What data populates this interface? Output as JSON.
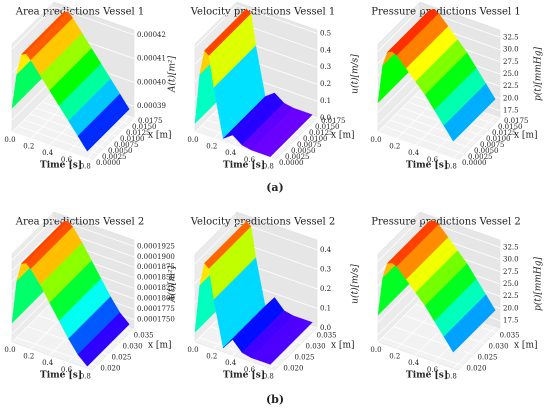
{
  "panel_labels": [
    "(a)",
    "(b)"
  ],
  "chart_data": [
    {
      "type": "surface3d",
      "title": "Area predictions Vessel 1",
      "xlabel": "Time [s]",
      "ylabel": "x [m]",
      "zlabel": "A(t)[m²]",
      "x": [
        0,
        0.05,
        0.1,
        0.15,
        0.2,
        0.3,
        0.4,
        0.5,
        0.6,
        0.7,
        0.8
      ],
      "values": [
        0.000395,
        0.00041,
        0.000419,
        0.00042,
        0.000418,
        0.000413,
        0.000408,
        0.000403,
        0.000398,
        0.000393,
        0.000388
      ],
      "xlim": [
        0,
        0.85
      ],
      "xticks": [
        {
          "value": 0,
          "label": "0.0"
        },
        0.2,
        0.4,
        0.6,
        0.8
      ],
      "ylim": [
        0,
        0.0175
      ],
      "yticks": [
        {
          "value": 0,
          "label": "0.0000"
        },
        0.0025,
        {
          "value": 0.005,
          "label": "0.0050"
        },
        0.0075,
        {
          "value": 0.01,
          "label": "0.0100"
        },
        0.0125,
        {
          "value": 0.015,
          "label": "0.0150"
        },
        0.0175
      ],
      "zlim": [
        0.000385,
        0.000422
      ],
      "zticks": [
        0.00039,
        {
          "value": 0.0004,
          "label": "0.00040"
        },
        0.00041,
        0.00042
      ]
    },
    {
      "type": "surface3d",
      "title": "Velocity predictions Vessel 1",
      "xlabel": "Time [s]",
      "ylabel": "x [m]",
      "zlabel": "u(t)[m/s]",
      "x": [
        0,
        0.05,
        0.1,
        0.15,
        0.2,
        0.3,
        0.4,
        0.5,
        0.6,
        0.7,
        0.8
      ],
      "values": [
        0.05,
        0.35,
        0.5,
        0.48,
        0.3,
        0.02,
        0.06,
        0.02,
        0.01,
        0.01,
        0.01
      ],
      "xlim": [
        0,
        0.85
      ],
      "xticks": [
        {
          "value": 0,
          "label": "0.0"
        },
        0.2,
        0.4,
        0.6,
        0.8
      ],
      "ylim": [
        0,
        0.0175
      ],
      "yticks": [
        {
          "value": 0,
          "label": "0.0000"
        },
        0.0025,
        {
          "value": 0.005,
          "label": "0.0050"
        },
        0.0075,
        {
          "value": 0.01,
          "label": "0.0100"
        },
        0.0125,
        {
          "value": 0.015,
          "label": "0.0150"
        },
        0.0175
      ],
      "zlim": [
        0,
        0.52
      ],
      "zticks": [
        {
          "value": 0,
          "label": "0.0"
        },
        0.1,
        0.2,
        0.3,
        0.4,
        0.5
      ]
    },
    {
      "type": "surface3d",
      "title": "Pressure predictions Vessel 1",
      "xlabel": "Time [s]",
      "ylabel": "x [m]",
      "zlabel": "p(t)[mmHg]",
      "x": [
        0,
        0.05,
        0.1,
        0.15,
        0.2,
        0.3,
        0.4,
        0.5,
        0.6,
        0.7,
        0.8
      ],
      "values": [
        22,
        30,
        33,
        33.5,
        33,
        31,
        29,
        27,
        24.5,
        22,
        19.5
      ],
      "xlim": [
        0,
        0.85
      ],
      "xticks": [
        {
          "value": 0,
          "label": "0.0"
        },
        0.2,
        0.4,
        0.6,
        0.8
      ],
      "ylim": [
        0,
        0.0175
      ],
      "yticks": [
        {
          "value": 0,
          "label": "0.0000"
        },
        0.0025,
        {
          "value": 0.005,
          "label": "0.0050"
        },
        0.0075,
        {
          "value": 0.01,
          "label": "0.0100"
        },
        0.0125,
        {
          "value": 0.015,
          "label": "0.0150"
        },
        0.0175
      ],
      "zlim": [
        16,
        34
      ],
      "zticks": [
        17.5,
        {
          "value": 20,
          "label": "20.0"
        },
        22.5,
        {
          "value": 25,
          "label": "25.0"
        },
        27.5,
        {
          "value": 30,
          "label": "30.0"
        },
        32.5
      ]
    },
    {
      "type": "surface3d",
      "title": "Area predictions Vessel 2",
      "xlabel": "Time [s]",
      "ylabel": "x [m]",
      "zlabel": "A(t)[m²]",
      "x": [
        0,
        0.05,
        0.1,
        0.15,
        0.2,
        0.3,
        0.4,
        0.5,
        0.6,
        0.7,
        0.8
      ],
      "values": [
        0.0001775,
        0.000188,
        0.0001925,
        0.000193,
        0.000192,
        0.000189,
        0.0001855,
        0.000182,
        0.0001785,
        0.0001755,
        0.0001735
      ],
      "xlim": [
        0,
        0.85
      ],
      "xticks": [
        {
          "value": 0,
          "label": "0.0"
        },
        0.2,
        0.4,
        0.6,
        0.8
      ],
      "ylim": [
        0.018,
        0.037
      ],
      "yticks": [
        {
          "value": 0.02,
          "label": "0.020"
        },
        0.025,
        {
          "value": 0.03,
          "label": "0.030"
        },
        0.035
      ],
      "zlim": [
        0.000173,
        0.000194
      ],
      "zticks": [
        {
          "value": 0.000175,
          "label": "0.0001750"
        },
        0.0001775,
        {
          "value": 0.00018,
          "label": "0.0001800"
        },
        0.0001825,
        {
          "value": 0.000185,
          "label": "0.0001850"
        },
        0.0001875,
        {
          "value": 0.00019,
          "label": "0.0001900"
        },
        0.0001925
      ]
    },
    {
      "type": "surface3d",
      "title": "Velocity predictions Vessel 2",
      "xlabel": "Time [s]",
      "ylabel": "x [m]",
      "zlabel": "u(t)[m/s]",
      "x": [
        0,
        0.05,
        0.1,
        0.15,
        0.2,
        0.3,
        0.4,
        0.5,
        0.6,
        0.7,
        0.8
      ],
      "values": [
        0.05,
        0.3,
        0.42,
        0.4,
        0.25,
        0.02,
        0.08,
        0.03,
        0.02,
        0.02,
        0.02
      ],
      "xlim": [
        0,
        0.85
      ],
      "xticks": [
        {
          "value": 0,
          "label": "0.0"
        },
        0.2,
        0.4,
        0.6,
        0.8
      ],
      "ylim": [
        0.018,
        0.037
      ],
      "yticks": [
        {
          "value": 0.02,
          "label": "0.020"
        },
        0.025,
        {
          "value": 0.03,
          "label": "0.030"
        },
        0.035
      ],
      "zlim": [
        0,
        0.45
      ],
      "zticks": [
        {
          "value": 0,
          "label": "0.0"
        },
        0.1,
        0.2,
        0.3,
        0.4
      ]
    },
    {
      "type": "surface3d",
      "title": "Pressure predictions Vessel 2",
      "xlabel": "Time [s]",
      "ylabel": "x [m]",
      "zlabel": "p(t)[mmHg]",
      "x": [
        0,
        0.05,
        0.1,
        0.15,
        0.2,
        0.3,
        0.4,
        0.5,
        0.6,
        0.7,
        0.8
      ],
      "values": [
        21.5,
        29.5,
        32.8,
        33.2,
        32.8,
        30.8,
        28.8,
        26.8,
        24.3,
        21.8,
        19.3
      ],
      "xlim": [
        0,
        0.85
      ],
      "xticks": [
        {
          "value": 0,
          "label": "0.0"
        },
        0.2,
        0.4,
        0.6,
        0.8
      ],
      "ylim": [
        0.018,
        0.037
      ],
      "yticks": [
        {
          "value": 0.02,
          "label": "0.020"
        },
        0.025,
        {
          "value": 0.03,
          "label": "0.030"
        },
        0.035
      ],
      "zlim": [
        16,
        34
      ],
      "zticks": [
        17.5,
        {
          "value": 20,
          "label": "20.0"
        },
        22.5,
        {
          "value": 25,
          "label": "25.0"
        },
        27.5,
        {
          "value": 30,
          "label": "30.0"
        },
        32.5
      ]
    }
  ]
}
